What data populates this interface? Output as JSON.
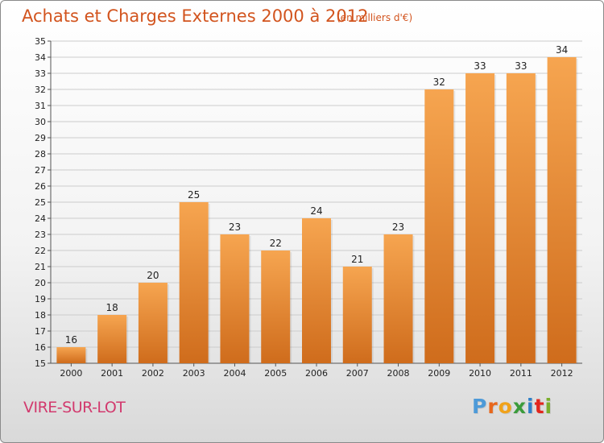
{
  "header": {
    "title": "Achats et Charges Externes 2000 à 2012",
    "subtitle": "(en milliers d'€)"
  },
  "footer": {
    "city": "VIRE-SUR-LOT",
    "logo_letters": [
      "P",
      "r",
      "o",
      "x",
      "i",
      "t",
      "i"
    ],
    "logo_colors": [
      "#4d9ad8",
      "#e8671c",
      "#f0a21a",
      "#3b9b3b",
      "#2f7fc7",
      "#e2261d",
      "#7aae2b"
    ]
  },
  "colors": {
    "bar_top": "#f6a550",
    "bar_bottom": "#cf6c1c",
    "grid": "#cccccc",
    "text": "#222222",
    "title": "#d2541e"
  },
  "chart_data": {
    "type": "bar",
    "categories": [
      "2000",
      "2001",
      "2002",
      "2003",
      "2004",
      "2005",
      "2006",
      "2007",
      "2008",
      "2009",
      "2010",
      "2011",
      "2012"
    ],
    "values": [
      16,
      18,
      20,
      25,
      23,
      22,
      24,
      21,
      23,
      32,
      33,
      33,
      34
    ],
    "ylim": [
      15,
      35
    ],
    "yticks": [
      15,
      16,
      17,
      18,
      19,
      20,
      21,
      22,
      23,
      24,
      25,
      26,
      27,
      28,
      29,
      30,
      31,
      32,
      33,
      34,
      35
    ],
    "grid": true,
    "data_labels": true
  }
}
